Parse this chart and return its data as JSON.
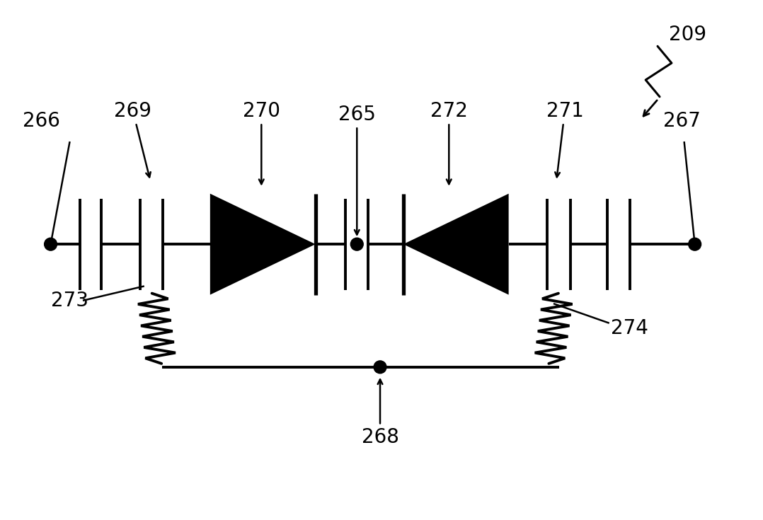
{
  "bg_color": "#ffffff",
  "line_color": "#000000",
  "line_width": 2.8,
  "fig_width": 10.78,
  "fig_height": 7.35,
  "dpi": 100
}
